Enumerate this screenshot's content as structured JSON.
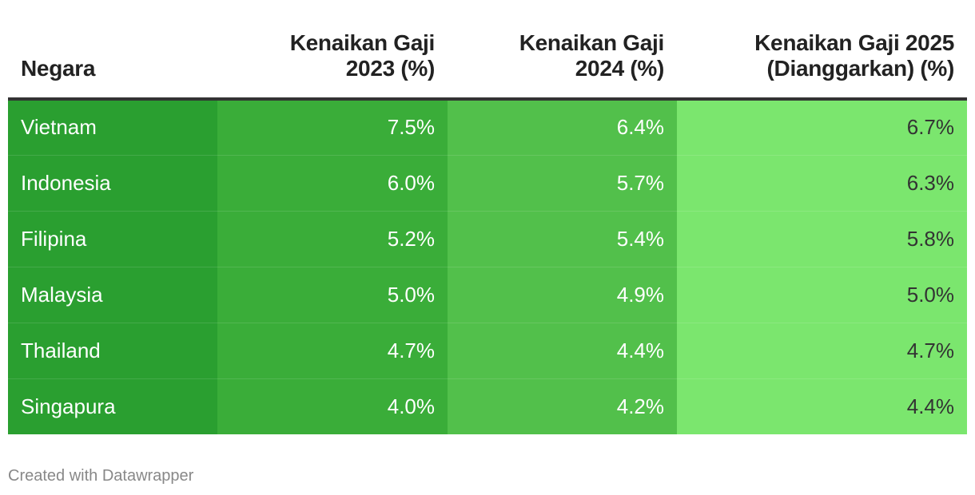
{
  "chart_data": {
    "type": "table",
    "columns": [
      {
        "label_line1": "Negara",
        "label_line2": ""
      },
      {
        "label_line1": "Kenaikan Gaji",
        "label_line2": "2023 (%)"
      },
      {
        "label_line1": "Kenaikan Gaji",
        "label_line2": "2024 (%)"
      },
      {
        "label_line1": "Kenaikan Gaji 2025",
        "label_line2": "(Dianggarkan) (%)"
      }
    ],
    "rows": [
      {
        "country": "Vietnam",
        "v2023": "7.5%",
        "v2024": "6.4%",
        "v2025": "6.7%"
      },
      {
        "country": "Indonesia",
        "v2023": "6.0%",
        "v2024": "5.7%",
        "v2025": "6.3%"
      },
      {
        "country": "Filipina",
        "v2023": "5.2%",
        "v2024": "5.4%",
        "v2025": "5.8%"
      },
      {
        "country": "Malaysia",
        "v2023": "5.0%",
        "v2024": "4.9%",
        "v2025": "5.0%"
      },
      {
        "country": "Thailand",
        "v2023": "4.7%",
        "v2024": "4.4%",
        "v2025": "4.7%"
      },
      {
        "country": "Singapura",
        "v2023": "4.0%",
        "v2024": "4.2%",
        "v2025": "4.4%"
      }
    ],
    "column_colors": [
      "#2a9f30",
      "#3aad39",
      "#52c04b",
      "#7be66e"
    ]
  },
  "footer": {
    "credit": "Created with Datawrapper"
  }
}
